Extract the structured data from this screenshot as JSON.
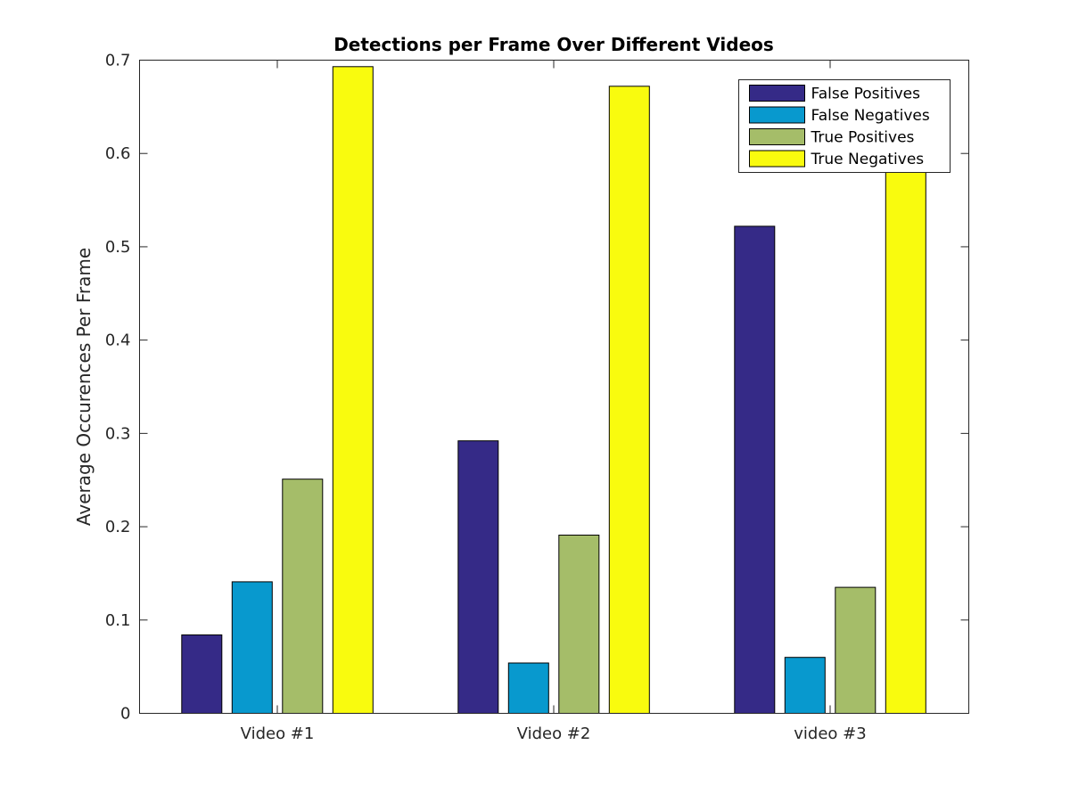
{
  "chart_data": {
    "type": "bar",
    "title": "Detections per Frame Over Different Videos",
    "xlabel": "",
    "ylabel": "Average Occurences Per Frame",
    "categories": [
      "Video #1",
      "Video #2",
      "video #3"
    ],
    "series": [
      {
        "name": "False Positives",
        "color": "#352a87",
        "values": [
          0.084,
          0.292,
          0.522
        ]
      },
      {
        "name": "False Negatives",
        "color": "#0899ce",
        "values": [
          0.141,
          0.054,
          0.06
        ]
      },
      {
        "name": "True Positives",
        "color": "#a5bd69",
        "values": [
          0.251,
          0.191,
          0.135
        ]
      },
      {
        "name": "True Negatives",
        "color": "#f9fb0e",
        "values": [
          0.693,
          0.672,
          0.585
        ]
      }
    ],
    "ylim": [
      0,
      0.7
    ],
    "yticks": [
      0,
      0.1,
      0.2,
      0.3,
      0.4,
      0.5,
      0.6,
      0.7
    ],
    "ytick_labels": [
      "0",
      "0.1",
      "0.2",
      "0.3",
      "0.4",
      "0.5",
      "0.6",
      "0.7"
    ],
    "grid": false,
    "legend_position": "top-right"
  }
}
